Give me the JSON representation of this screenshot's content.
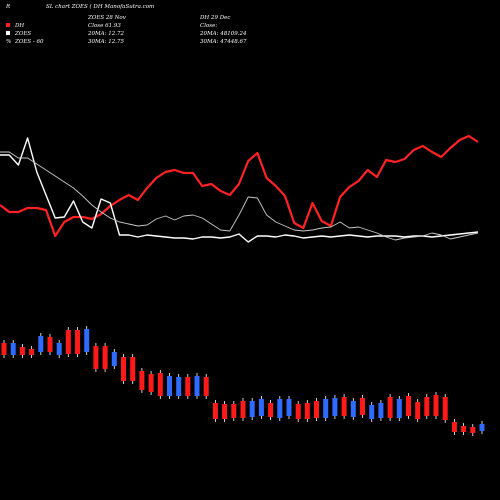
{
  "header": {
    "left": "R",
    "title": "SL chart ZOES ( DH ManofaSutra.com"
  },
  "info": {
    "col1_line1": "ZOES 28 Nov",
    "col1_line2": "Close 61.93",
    "col1_line3": "20MA: 12.72",
    "col1_line4": "30MA: 12.75",
    "col2_line1": "DH 29 Dec",
    "col2_line2": "Close:",
    "col2_line3": "20MA: 48109.24",
    "col2_line4": "30MA: 47448.67"
  },
  "legend": {
    "item1": "DH",
    "item2": "ZOES",
    "item3": "ZOES - 60"
  },
  "colors": {
    "background": "#000000",
    "red_line": "#ff2222",
    "white_line": "#ffffff",
    "ma_line": "#c8c8c8",
    "bar_red": "#ff1a1a",
    "bar_blue": "#2f6bff"
  },
  "chart_data": {
    "type": "line",
    "x_count": 53,
    "series": [
      {
        "name": "DH",
        "color": "#ff2222",
        "values": [
          205,
          212,
          212,
          208,
          208,
          210,
          236,
          222,
          217,
          217,
          219,
          214,
          206,
          200,
          195,
          200,
          188,
          178,
          172,
          170,
          173,
          173,
          186,
          184,
          191,
          195,
          184,
          161,
          153,
          178,
          186,
          196,
          223,
          228,
          203,
          221,
          226,
          197,
          187,
          181,
          170,
          177,
          160,
          162,
          159,
          150,
          146,
          152,
          157,
          148,
          140,
          136,
          142
        ]
      },
      {
        "name": "ZOES",
        "color": "#ffffff",
        "values": [
          155,
          155,
          165,
          138,
          172,
          195,
          218,
          217,
          201,
          222,
          228,
          199,
          203,
          235,
          235,
          237,
          235,
          236,
          237,
          238,
          238,
          239,
          237,
          237,
          238,
          237,
          234,
          242,
          236,
          236,
          237,
          235,
          236,
          238,
          237,
          236,
          237,
          236,
          235,
          236,
          237,
          236,
          236,
          236,
          237,
          236,
          236,
          237,
          236,
          235,
          234,
          233,
          232
        ]
      },
      {
        "name": "ZOES - 60",
        "color": "#c8c8c8",
        "values": [
          152,
          152,
          158,
          158,
          164,
          170,
          176,
          182,
          188,
          196,
          205,
          212,
          218,
          222,
          224,
          226,
          225,
          219,
          216,
          220,
          216,
          215,
          218,
          224,
          230,
          231,
          215,
          197,
          198,
          215,
          222,
          226,
          230,
          231,
          230,
          228,
          227,
          222,
          228,
          227,
          230,
          233,
          237,
          240,
          238,
          237,
          236,
          233,
          235,
          239,
          237,
          235,
          233
        ]
      }
    ],
    "bars": {
      "colors": [
        "red",
        "blue",
        "red",
        "red",
        "blue",
        "red",
        "blue",
        "red",
        "red",
        "blue",
        "red",
        "red",
        "blue",
        "red",
        "red",
        "red",
        "red",
        "red",
        "blue",
        "blue",
        "red",
        "blue",
        "red",
        "red",
        "red",
        "red",
        "red",
        "blue",
        "blue",
        "red",
        "blue",
        "blue",
        "red",
        "red",
        "red",
        "blue",
        "blue",
        "red",
        "blue",
        "red",
        "blue",
        "blue",
        "red",
        "blue",
        "red",
        "red",
        "red",
        "red",
        "red",
        "red",
        "red",
        "red",
        "blue"
      ],
      "tops": [
        343,
        343,
        347,
        349,
        336,
        337,
        343,
        330,
        330,
        329,
        346,
        346,
        352,
        357,
        357,
        371,
        374,
        373,
        376,
        377,
        377,
        376,
        377,
        403,
        404,
        404,
        401,
        401,
        399,
        403,
        399,
        399,
        404,
        403,
        401,
        399,
        398,
        397,
        401,
        398,
        405,
        403,
        397,
        399,
        396,
        402,
        397,
        395,
        397,
        422,
        426,
        427,
        424
      ],
      "bottoms": [
        355,
        355,
        355,
        355,
        352,
        352,
        355,
        354,
        354,
        352,
        369,
        369,
        366,
        381,
        381,
        390,
        392,
        396,
        396,
        396,
        396,
        396,
        396,
        419,
        419,
        418,
        418,
        417,
        416,
        417,
        418,
        416,
        419,
        419,
        418,
        418,
        416,
        416,
        417,
        415,
        419,
        418,
        418,
        418,
        416,
        419,
        416,
        416,
        420,
        432,
        432,
        433,
        431
      ]
    }
  }
}
